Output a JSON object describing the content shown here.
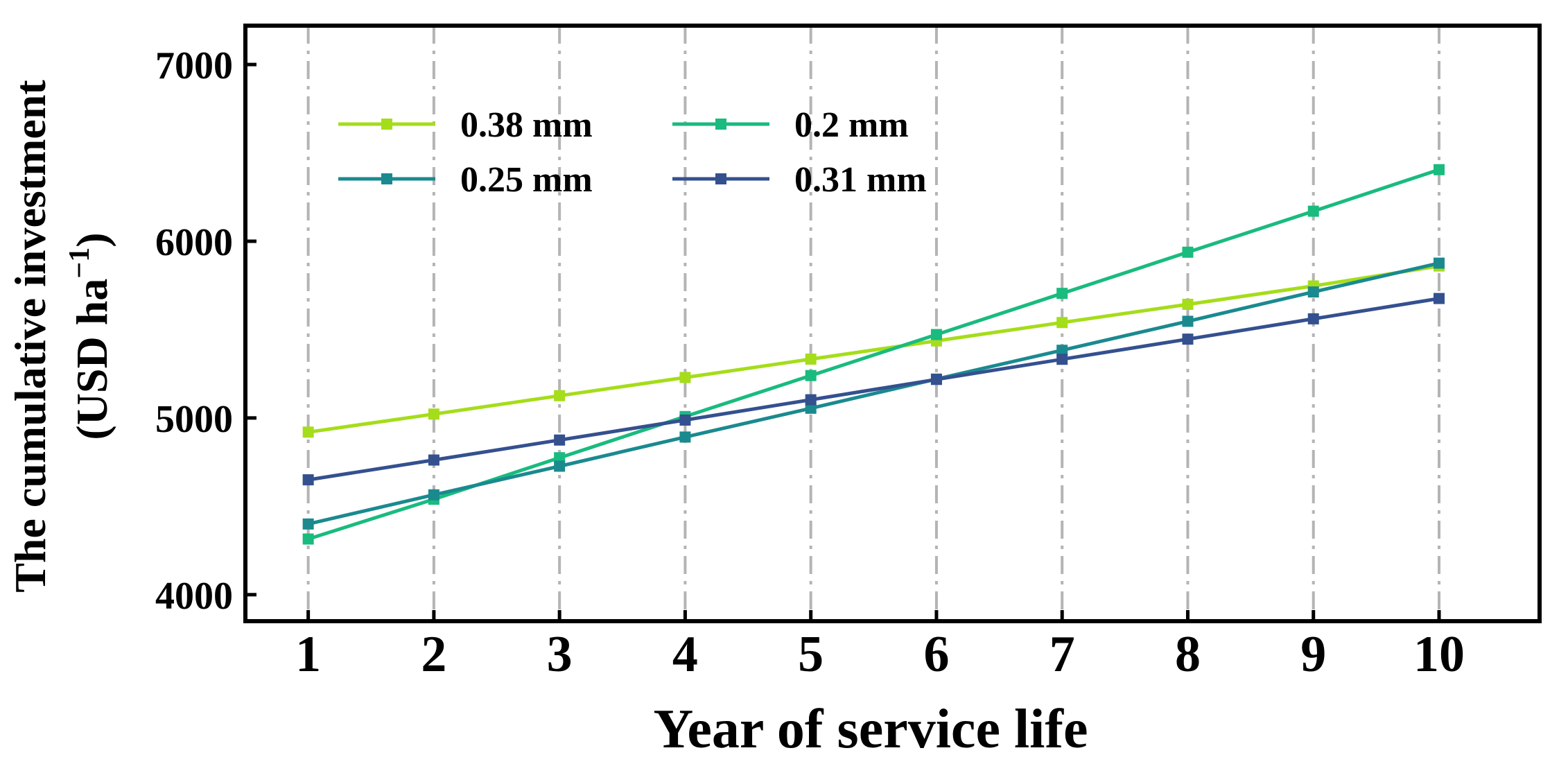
{
  "chart_data": {
    "type": "line",
    "title": "",
    "xlabel": "Year of service life",
    "ylabel_line1": "The cumulative investment",
    "ylabel_line2_main": "(USD ha",
    "ylabel_line2_sup": "−1",
    "ylabel_line2_end": ")",
    "x": [
      1,
      2,
      3,
      4,
      5,
      6,
      7,
      8,
      9,
      10
    ],
    "x_tick_labels": [
      "1",
      "2",
      "3",
      "4",
      "5",
      "6",
      "7",
      "8",
      "9",
      "10"
    ],
    "y_ticks": [
      4000,
      5000,
      6000,
      7000
    ],
    "y_tick_labels": [
      "4000",
      "5000",
      "6000",
      "7000"
    ],
    "xlim": [
      0.5,
      10.8
    ],
    "ylim": [
      3850,
      7220
    ],
    "grid": "vertical dash-dot",
    "legend_position": "top-left",
    "series": [
      {
        "name": "0.38 mm",
        "color": "#a5dd1a",
        "values": [
          4920,
          5022,
          5126,
          5229,
          5333,
          5436,
          5540,
          5643,
          5747,
          5860
        ]
      },
      {
        "name": "0.2 mm",
        "color": "#19bb7e",
        "values": [
          4315,
          4540,
          4775,
          5008,
          5240,
          5472,
          5705,
          5938,
          6170,
          6405
        ]
      },
      {
        "name": "0.25 mm",
        "color": "#1a8a8f",
        "values": [
          4400,
          4565,
          4727,
          4892,
          5055,
          5220,
          5383,
          5547,
          5713,
          5876
        ]
      },
      {
        "name": "0.31 mm",
        "color": "#34508f",
        "values": [
          4650,
          4762,
          4875,
          4988,
          5103,
          5218,
          5332,
          5446,
          5561,
          5676
        ]
      }
    ]
  }
}
